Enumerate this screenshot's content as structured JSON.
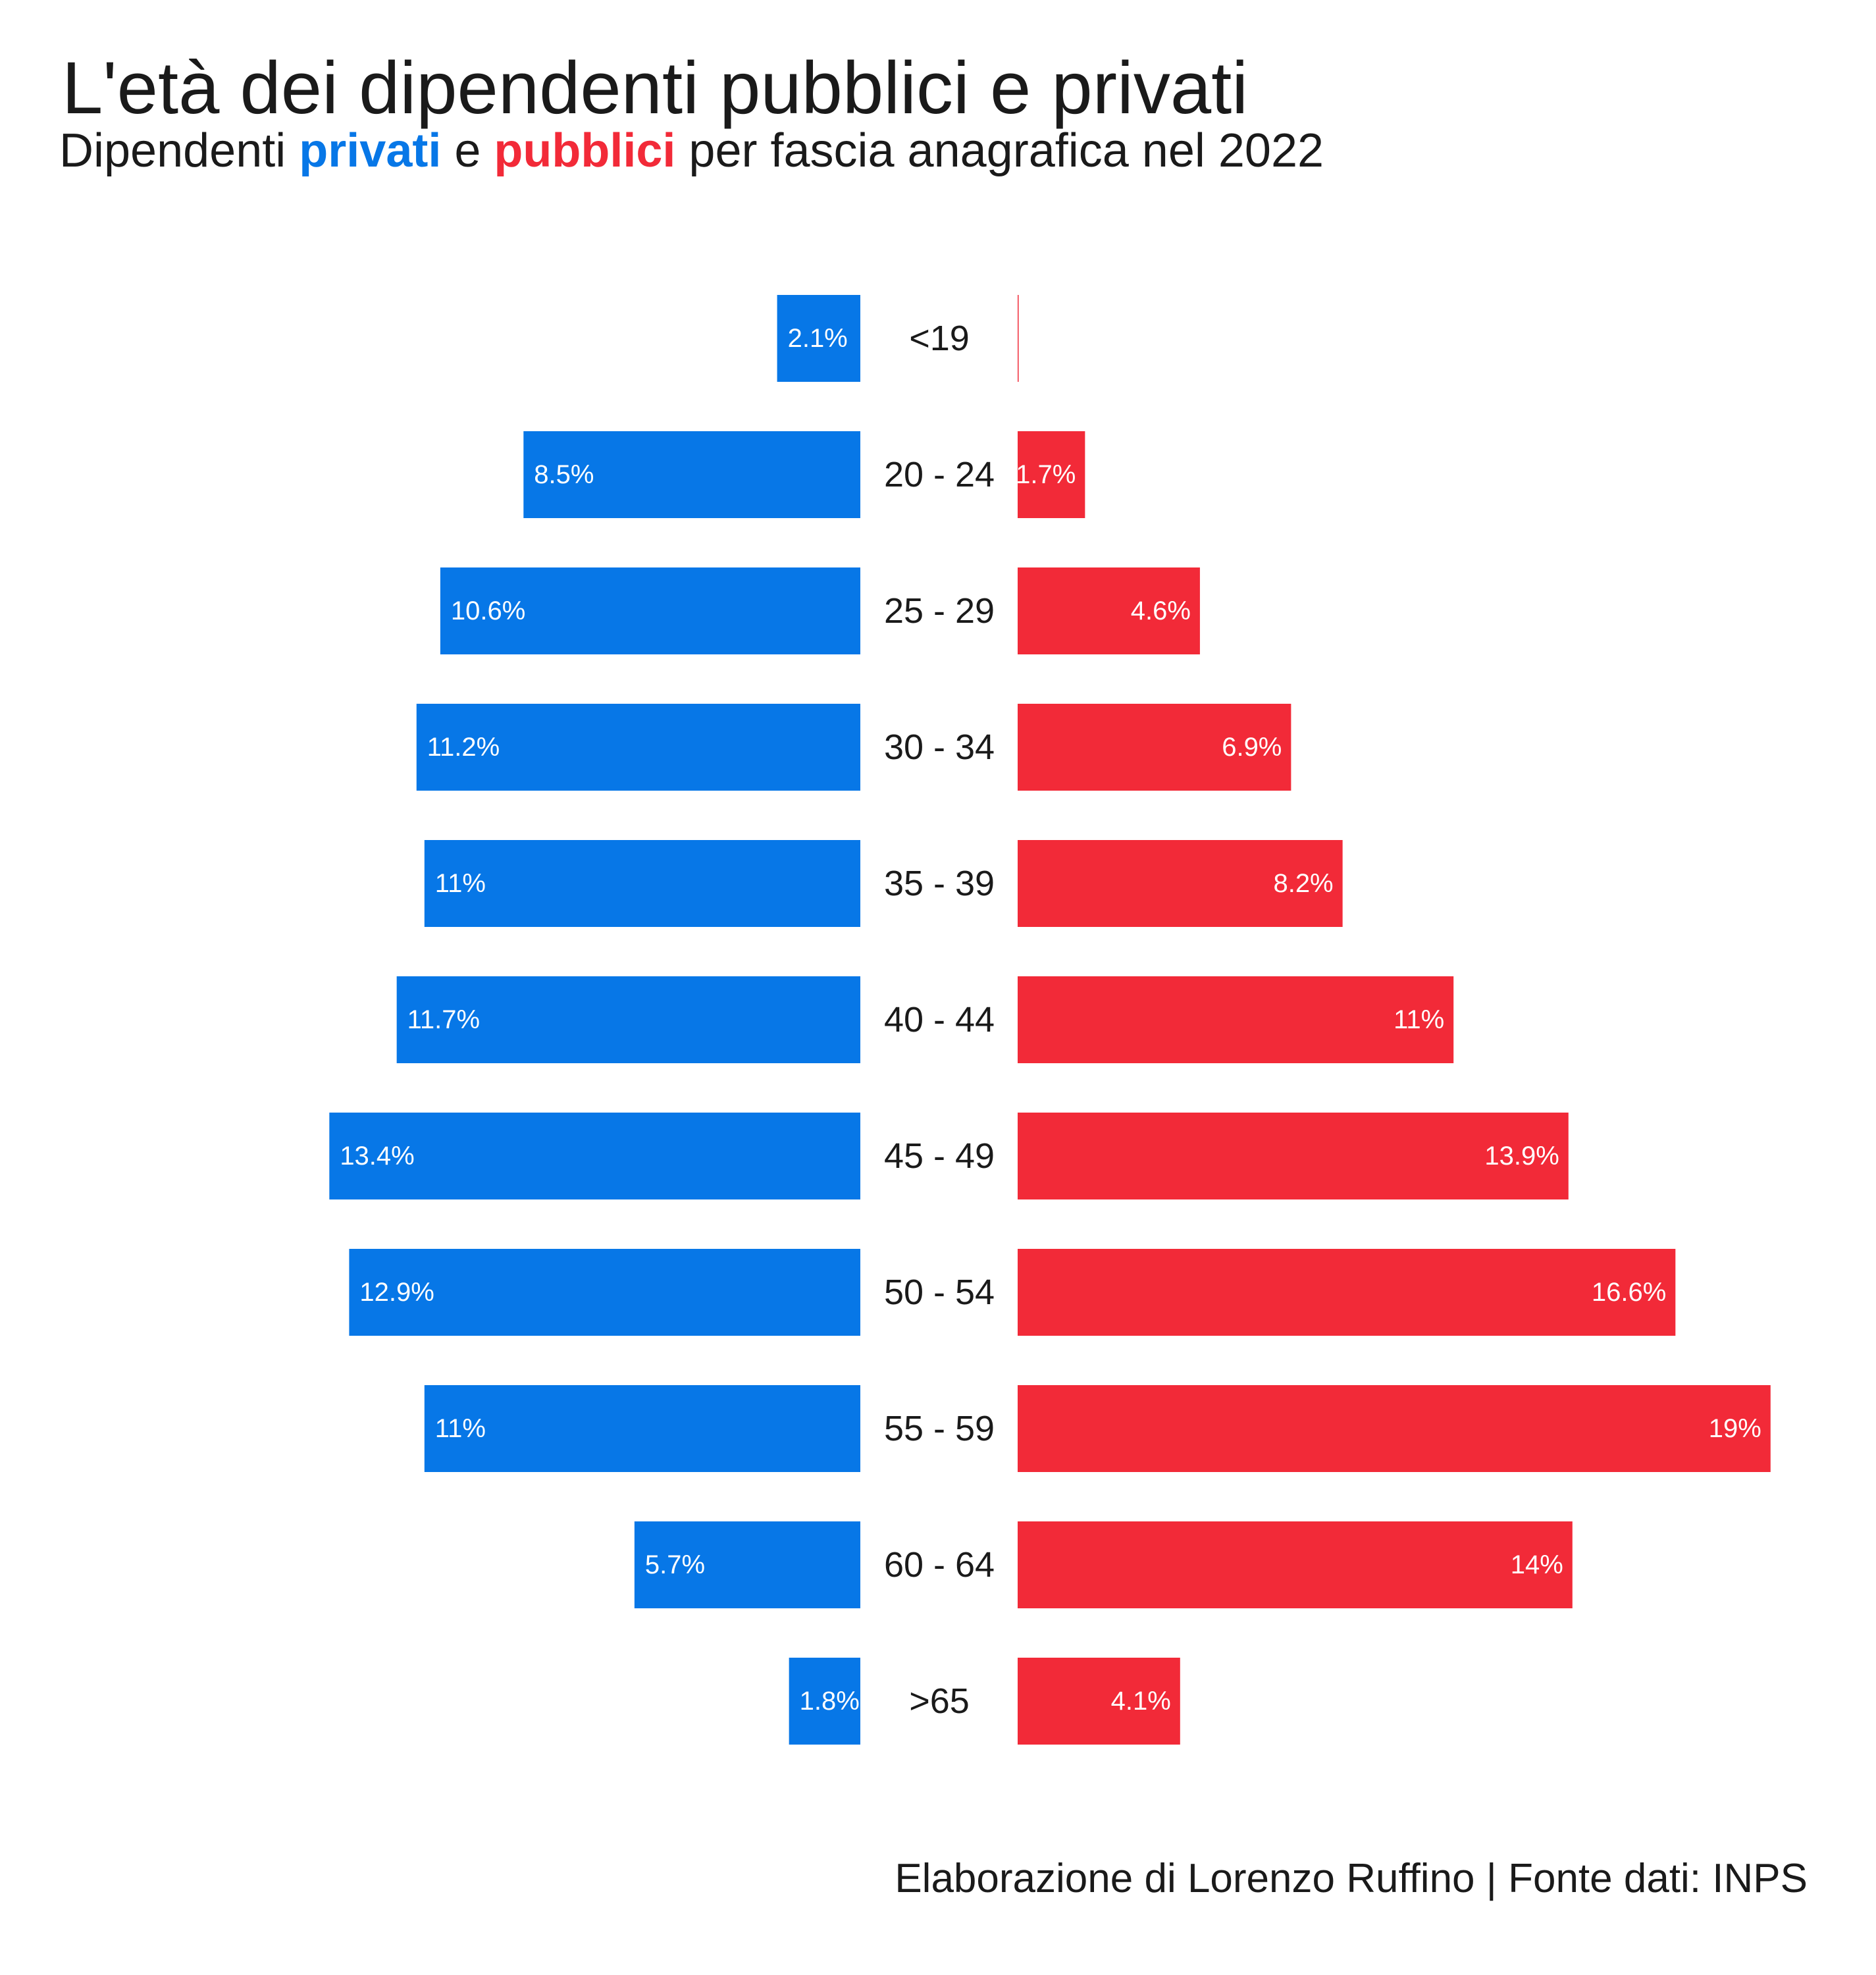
{
  "colors": {
    "private": "#0777E7",
    "public": "#F22A38",
    "bar_label": "#ffffff",
    "text": "#1a1a1a"
  },
  "header": {
    "title": "L'età dei dipendenti pubblici e privati",
    "subtitle_pre": "Dipendenti ",
    "subtitle_private": "privati",
    "subtitle_mid": " e ",
    "subtitle_public": "pubblici",
    "subtitle_post": " per fascia anagrafica nel 2022"
  },
  "caption": "Elaborazione di Lorenzo Ruffino | Fonte dati: INPS",
  "chart_data": {
    "type": "bar",
    "orientation": "horizontal-diverging",
    "categories": [
      "<19",
      "20 - 24",
      "25 - 29",
      "30 - 34",
      "35 - 39",
      "40 - 44",
      "45 - 49",
      "50 - 54",
      "55 - 59",
      "60 - 64",
      ">65"
    ],
    "series": [
      {
        "name": "privati",
        "side": "left",
        "values": [
          2.1,
          8.5,
          10.6,
          11.2,
          11,
          11.7,
          13.4,
          12.9,
          11,
          5.7,
          1.8
        ],
        "labels": [
          "2.1%",
          "8.5%",
          "10.6%",
          "11.2%",
          "11%",
          "11.7%",
          "13.4%",
          "12.9%",
          "11%",
          "5.7%",
          "1.8%"
        ]
      },
      {
        "name": "pubblici",
        "side": "right",
        "values": [
          0.02,
          1.7,
          4.6,
          6.9,
          8.2,
          11,
          13.9,
          16.6,
          19,
          14,
          4.1
        ],
        "labels": [
          "",
          "1.7%",
          "4.6%",
          "6.9%",
          "8.2%",
          "11%",
          "13.9%",
          "16.6%",
          "19%",
          "14%",
          "4.1%"
        ]
      }
    ],
    "unit": "%",
    "grid": false,
    "legend": "in subtitle"
  }
}
